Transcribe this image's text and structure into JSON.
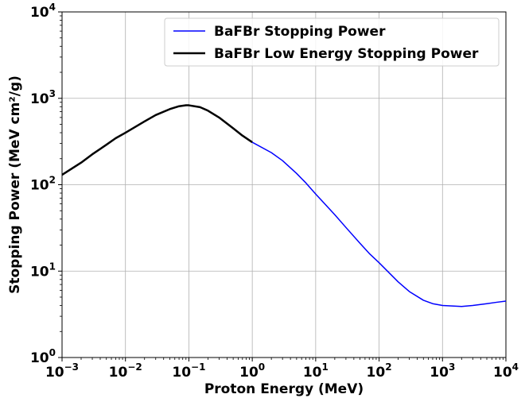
{
  "chart_data": {
    "type": "line",
    "xlabel": "Proton Energy (MeV)",
    "ylabel": "Stopping Power (MeV cm²/g)",
    "xscale": "log",
    "yscale": "log",
    "xlim": [
      0.001,
      10000
    ],
    "ylim": [
      1,
      10000
    ],
    "grid": true,
    "legend_position": "top-right",
    "x_ticks": [
      "10^-3",
      "10^-2",
      "10^-1",
      "10^0",
      "10^1",
      "10^2",
      "10^3",
      "10^4"
    ],
    "y_ticks": [
      "10^0",
      "10^1",
      "10^2",
      "10^3",
      "10^4"
    ],
    "series": [
      {
        "name": "BaFBr Stopping Power",
        "color": "#0000ff",
        "x": [
          1,
          2,
          3,
          5,
          7,
          10,
          20,
          30,
          50,
          70,
          100,
          200,
          300,
          500,
          700,
          1000,
          2000,
          3000,
          5000,
          7000,
          10000
        ],
        "y": [
          310,
          235,
          190,
          135,
          105,
          78,
          45,
          32,
          21,
          16,
          12.5,
          7.5,
          5.8,
          4.6,
          4.2,
          4.0,
          3.9,
          4.0,
          4.2,
          4.35,
          4.5
        ]
      },
      {
        "name": "BaFBr Low Energy Stopping Power",
        "color": "#000000",
        "x": [
          0.001,
          0.002,
          0.003,
          0.005,
          0.007,
          0.01,
          0.02,
          0.03,
          0.05,
          0.07,
          0.09,
          0.1,
          0.15,
          0.2,
          0.3,
          0.5,
          0.7,
          1
        ],
        "y": [
          130,
          180,
          225,
          290,
          345,
          400,
          540,
          640,
          750,
          810,
          830,
          830,
          790,
          720,
          600,
          450,
          370,
          310
        ]
      }
    ]
  }
}
